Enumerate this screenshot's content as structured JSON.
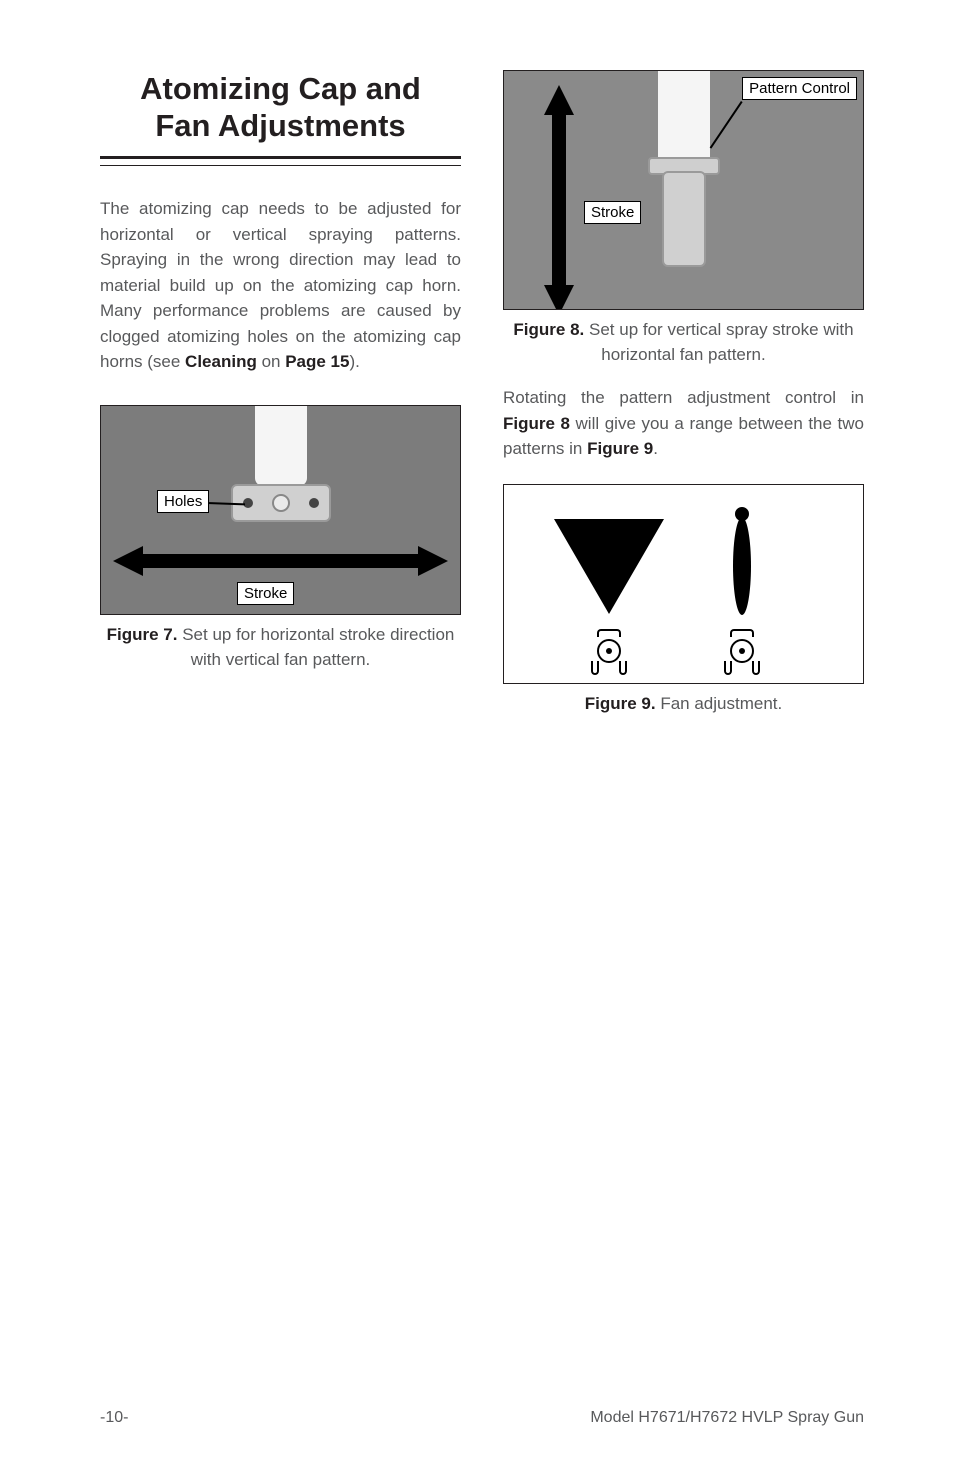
{
  "title_line1": "Atomizing Cap and",
  "title_line2": "Fan Adjustments",
  "para1_parts": [
    {
      "t": "The atomizing cap needs to be adjusted for horizontal or vertical spraying patterns. Spraying in the wrong direction may lead to material build up on the atomizing cap horn. Many performance problems are caused by clogged atomizing holes on the atomizing cap horns (see ",
      "b": false
    },
    {
      "t": "Cleaning",
      "b": true
    },
    {
      "t": " on ",
      "b": false
    },
    {
      "t": "Page 15",
      "b": true
    },
    {
      "t": ").",
      "b": false
    }
  ],
  "para2_parts": [
    {
      "t": "Rotating the pattern adjustment control in ",
      "b": false
    },
    {
      "t": "Figure 8",
      "b": true
    },
    {
      "t": " will give you a range between the two patterns in ",
      "b": false
    },
    {
      "t": "Figure 9",
      "b": true
    },
    {
      "t": ".",
      "b": false
    }
  ],
  "fig7": {
    "label_holes": "Holes",
    "label_stroke": "Stroke",
    "caption_bold": "Figure 7.",
    "caption_rest": " Set up for horizontal stroke direction with vertical fan pattern."
  },
  "fig8": {
    "label_pattern": "Pattern Control",
    "label_stroke": "Stroke",
    "caption_bold": "Figure 8.",
    "caption_rest": " Set up for vertical spray stroke with horizontal fan pattern."
  },
  "fig9": {
    "caption_bold": "Figure 9.",
    "caption_rest": " Fan adjustment."
  },
  "footer": {
    "left": "-10-",
    "right": "Model H7671/H7672 HVLP Spray Gun"
  },
  "colors": {
    "text": "#58595b",
    "bold": "#231f20",
    "fig7_bg": "#7c7c7c",
    "fig8_bg": "#8a8a8a",
    "label_bg": "#ffffff",
    "border": "#231f20"
  }
}
